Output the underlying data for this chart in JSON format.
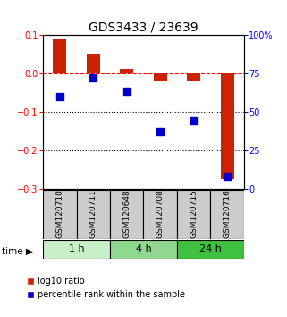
{
  "title": "GDS3433 / 23639",
  "samples": [
    "GSM120710",
    "GSM120711",
    "GSM120648",
    "GSM120708",
    "GSM120715",
    "GSM120716"
  ],
  "log10_ratio": [
    0.09,
    0.05,
    0.012,
    -0.022,
    -0.018,
    -0.275
  ],
  "percentile_rank": [
    60,
    72,
    63,
    37,
    44,
    8
  ],
  "ylim_left": [
    -0.3,
    0.1
  ],
  "ylim_right": [
    0,
    100
  ],
  "yticks_left": [
    -0.3,
    -0.2,
    -0.1,
    0.0,
    0.1
  ],
  "yticks_right": [
    0,
    25,
    50,
    75,
    100
  ],
  "ytick_labels_right": [
    "0",
    "25",
    "50",
    "75",
    "100%"
  ],
  "hline_y": 0.0,
  "dotted_lines": [
    -0.1,
    -0.2
  ],
  "time_groups": [
    {
      "label": "1 h",
      "start": 0,
      "end": 2,
      "color": "#c8f0c8"
    },
    {
      "label": "4 h",
      "start": 2,
      "end": 4,
      "color": "#90d890"
    },
    {
      "label": "24 h",
      "start": 4,
      "end": 6,
      "color": "#40c040"
    }
  ],
  "bar_color": "#cc2200",
  "dot_color": "#0000cc",
  "bar_width": 0.4,
  "dot_size": 28,
  "title_fontsize": 10,
  "tick_fontsize": 7,
  "legend_fontsize": 7,
  "sample_label_fontsize": 6.5,
  "time_label_fontsize": 8,
  "bg_color": "#cccccc",
  "legend_red": "log10 ratio",
  "legend_blue": "percentile rank within the sample"
}
